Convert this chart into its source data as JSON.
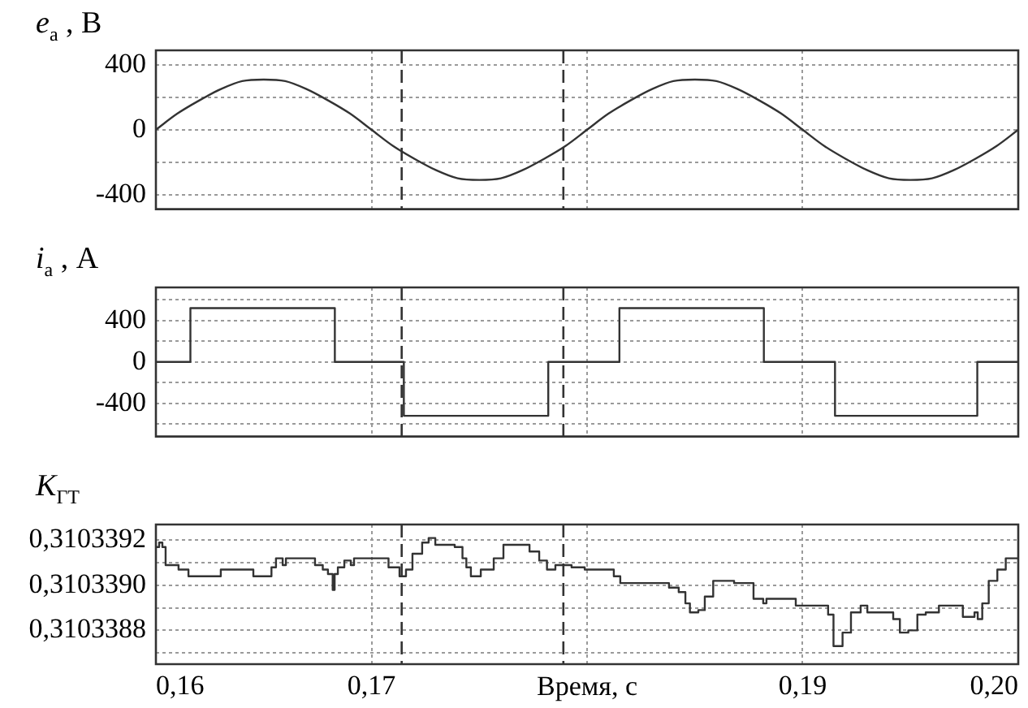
{
  "chart_data": [
    {
      "type": "line",
      "ylabel": "e$_{a}$ , В",
      "color": "#333333",
      "marker": "none",
      "grid": true,
      "tick_labels": "y",
      "x": [
        0.16,
        0.161,
        0.162,
        0.163,
        0.164,
        0.165,
        0.166,
        0.167,
        0.168,
        0.169,
        0.17,
        0.171,
        0.172,
        0.173,
        0.174,
        0.175,
        0.176,
        0.177,
        0.178,
        0.179,
        0.18,
        0.181,
        0.182,
        0.183,
        0.184,
        0.185,
        0.186,
        0.187,
        0.188,
        0.189,
        0.19,
        0.191,
        0.192,
        0.193,
        0.194,
        0.195,
        0.196,
        0.197,
        0.198,
        0.199,
        0.2
      ],
      "values": [
        0,
        100,
        180,
        250,
        300,
        310,
        300,
        250,
        180,
        100,
        0,
        -100,
        -180,
        -250,
        -300,
        -310,
        -300,
        -250,
        -180,
        -100,
        0,
        100,
        180,
        250,
        300,
        310,
        300,
        250,
        180,
        100,
        0,
        -100,
        -180,
        -250,
        -300,
        -310,
        -300,
        -250,
        -180,
        -100,
        0
      ],
      "xlim": [
        0.16,
        0.2
      ],
      "xticks": [
        0.16,
        0.17,
        0.18,
        0.19,
        0.2
      ],
      "ylim": [
        -490,
        490
      ],
      "yticks": [
        -400,
        {
          "value": -200,
          "label": null
        },
        0,
        {
          "value": 200,
          "label": null
        },
        400
      ],
      "ref_lines": [
        {
          "axis": "x",
          "value": 0.1714,
          "line_style": "dashed",
          "color": "#333333"
        },
        {
          "axis": "x",
          "value": 0.1789,
          "line_style": "dashed",
          "color": "#333333"
        }
      ]
    },
    {
      "type": "step",
      "ylabel": "i$_{a}$ , А",
      "color": "#333333",
      "marker": "none",
      "grid": true,
      "tick_labels": "y",
      "x": [
        0.16,
        0.1616,
        0.1683,
        0.1715,
        0.1782,
        0.1815,
        0.1882,
        0.1915,
        0.1981,
        0.2
      ],
      "values": [
        0,
        520,
        0,
        -520,
        0,
        520,
        0,
        -520,
        0,
        0
      ],
      "xlim": [
        0.16,
        0.2
      ],
      "xticks": [
        0.16,
        0.17,
        0.18,
        0.19,
        0.2
      ],
      "ylim": [
        -720,
        720
      ],
      "yticks": [
        {
          "value": -600,
          "label": null
        },
        -400,
        {
          "value": -200,
          "label": null
        },
        0,
        {
          "value": 200,
          "label": null
        },
        400,
        {
          "value": 600,
          "label": null
        }
      ],
      "ref_lines": [
        {
          "axis": "x",
          "value": 0.1714,
          "line_style": "dashed",
          "color": "#333333"
        },
        {
          "axis": "x",
          "value": 0.1789,
          "line_style": "dashed",
          "color": "#333333"
        }
      ]
    },
    {
      "type": "step",
      "ylabel": "K$_{ГТ}$",
      "xlabel": "Время, с",
      "color": "#333333",
      "marker": "none",
      "grid": true,
      "x": [
        0.16,
        0.16015,
        0.1603,
        0.16045,
        0.16105,
        0.16151,
        0.16301,
        0.16452,
        0.16536,
        0.16557,
        0.16588,
        0.16603,
        0.16738,
        0.16774,
        0.16798,
        0.1682,
        0.16829,
        0.16844,
        0.16874,
        0.16904,
        0.16919,
        0.16949,
        0.17079,
        0.1713,
        0.1716,
        0.1719,
        0.17235,
        0.17265,
        0.17296,
        0.17386,
        0.17422,
        0.1744,
        0.17461,
        0.17507,
        0.17567,
        0.17612,
        0.17733,
        0.17778,
        0.17814,
        0.17853,
        0.17928,
        0.17989,
        0.18124,
        0.18154,
        0.1829,
        0.1838,
        0.18425,
        0.18456,
        0.18477,
        0.18516,
        0.18546,
        0.18585,
        0.18682,
        0.18772,
        0.18817,
        0.18832,
        0.18968,
        0.19088,
        0.19118,
        0.19143,
        0.19185,
        0.19224,
        0.19269,
        0.193,
        0.1942,
        0.19451,
        0.1949,
        0.19532,
        0.19571,
        0.19632,
        0.19707,
        0.19743,
        0.19797,
        0.19812,
        0.19833,
        0.19863,
        0.19903,
        0.19942,
        0.19978,
        0.2
      ],
      "values": [
        0.31033917,
        0.31033919,
        0.31033917,
        0.31033909,
        0.31033907,
        0.31033904,
        0.31033907,
        0.31033904,
        0.31033908,
        0.31033912,
        0.31033909,
        0.31033912,
        0.31033909,
        0.31033907,
        0.31033905,
        0.31033898,
        0.31033905,
        0.31033908,
        0.31033911,
        0.31033909,
        0.31033912,
        0.31033912,
        0.31033908,
        0.31033904,
        0.31033907,
        0.31033914,
        0.31033919,
        0.31033921,
        0.31033918,
        0.31033917,
        0.31033912,
        0.31033908,
        0.31033904,
        0.31033907,
        0.31033912,
        0.31033918,
        0.31033915,
        0.31033911,
        0.31033907,
        0.31033909,
        0.31033908,
        0.31033907,
        0.31033904,
        0.31033901,
        0.31033901,
        0.31033899,
        0.31033897,
        0.31033892,
        0.31033888,
        0.31033889,
        0.31033895,
        0.31033902,
        0.31033901,
        0.31033894,
        0.31033892,
        0.31033894,
        0.31033891,
        0.31033891,
        0.31033887,
        0.31033873,
        0.31033879,
        0.31033888,
        0.31033891,
        0.31033888,
        0.31033885,
        0.31033879,
        0.3103388,
        0.31033887,
        0.31033888,
        0.31033891,
        0.31033891,
        0.31033886,
        0.31033888,
        0.31033885,
        0.31033892,
        0.31033902,
        0.31033907,
        0.31033912,
        0.31033912,
        0.31033912
      ],
      "xlim": [
        0.16,
        0.2
      ],
      "xticks": [
        {
          "value": 0.16,
          "label": "0,16"
        },
        {
          "value": 0.17,
          "label": "0,17"
        },
        {
          "value": 0.18,
          "label": null
        },
        {
          "value": 0.19,
          "label": "0,19"
        },
        {
          "value": 0.2,
          "label": "0,20"
        }
      ],
      "ylim": [
        0.31033865,
        0.31033927
      ],
      "yticks": [
        {
          "value": 0.3103387,
          "label": null
        },
        {
          "value": 0.3103388,
          "label": "0,3103388"
        },
        {
          "value": 0.3103389,
          "label": null
        },
        {
          "value": 0.310339,
          "label": "0,3103390"
        },
        {
          "value": 0.3103391,
          "label": null
        },
        {
          "value": 0.3103392,
          "label": "0,3103392"
        }
      ],
      "ref_lines": [
        {
          "axis": "x",
          "value": 0.1714,
          "line_style": "dashed",
          "color": "#333333"
        },
        {
          "axis": "x",
          "value": 0.1789,
          "line_style": "dashed",
          "color": "#333333"
        }
      ]
    }
  ]
}
